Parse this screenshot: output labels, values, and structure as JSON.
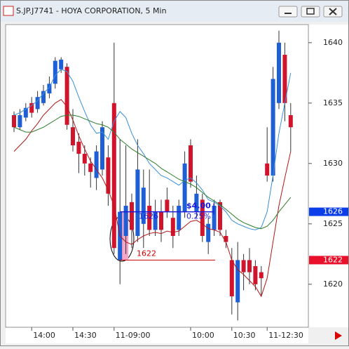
{
  "window_title": "S.JP.J7741 - HOYA CORPORATION, 5 Min",
  "chart_data": {
    "type": "candlestick",
    "ylim": [
      1616.5,
      1641.5
    ],
    "yticks": [
      1620,
      1625,
      1630,
      1635,
      1640
    ],
    "categories": [
      null,
      null,
      null,
      "14:00",
      null,
      null,
      null,
      null,
      null,
      null,
      "14:30",
      null,
      null,
      null,
      null,
      null,
      null,
      "11-09:00",
      null,
      null,
      null,
      null,
      null,
      null,
      null,
      null,
      null,
      null,
      null,
      null,
      "10:00",
      null,
      null,
      null,
      null,
      null,
      null,
      "10:30",
      null,
      null,
      null,
      null,
      null,
      "11-12:30",
      null,
      null,
      null,
      null
    ],
    "up_color": "#1f5fd6",
    "down_color": "#d0142c",
    "candles": [
      [
        1634,
        1634.3,
        1632.6,
        1633
      ],
      [
        1633,
        1634.5,
        1632.8,
        1634
      ],
      [
        1633.8,
        1635,
        1633.5,
        1634.6
      ],
      [
        1635,
        1635.5,
        1633.8,
        1634.2
      ],
      [
        1634.5,
        1636,
        1634.2,
        1635.5
      ],
      [
        1635,
        1636.5,
        1634.8,
        1636
      ],
      [
        1635.8,
        1637.2,
        1635.4,
        1636.6
      ],
      [
        1636.6,
        1638.8,
        1636.2,
        1638.5
      ],
      [
        1637.8,
        1638.8,
        1637.5,
        1638.6
      ],
      [
        1638,
        1638.3,
        1632.8,
        1633.2
      ],
      [
        1633,
        1634.5,
        1631,
        1631.5
      ],
      [
        1631.8,
        1632.5,
        1629.2,
        1630.8
      ],
      [
        1630.8,
        1631.5,
        1629,
        1630
      ],
      [
        1630,
        1630.5,
        1628,
        1629.3
      ],
      [
        1628.8,
        1631.5,
        1627.8,
        1631
      ],
      [
        1629.5,
        1633.5,
        1629,
        1633
      ],
      [
        1630.5,
        1631.5,
        1626.5,
        1627.5
      ],
      [
        1635,
        1640,
        1622.5,
        1623
      ],
      [
        1622,
        1632,
        1620,
        1626
      ],
      [
        1624,
        1631.5,
        1622.5,
        1626.5
      ],
      [
        1626.8,
        1627.5,
        1623,
        1624.5
      ],
      [
        1624,
        1632,
        1623.5,
        1629.5
      ],
      [
        1625,
        1629.5,
        1623,
        1628
      ],
      [
        1626.5,
        1629.5,
        1624,
        1624.5
      ],
      [
        1624.5,
        1627,
        1624,
        1626
      ],
      [
        1626,
        1627,
        1623.5,
        1624.5
      ],
      [
        1627,
        1628,
        1625.5,
        1626
      ],
      [
        1625.5,
        1626.5,
        1623,
        1624
      ],
      [
        1624.5,
        1627,
        1624,
        1626.5
      ],
      [
        1626,
        1631,
        1625.5,
        1630
      ],
      [
        1631.5,
        1632,
        1628,
        1628.5
      ],
      [
        1626,
        1629,
        1625.5,
        1627.5
      ],
      [
        1627,
        1627.5,
        1623.5,
        1624
      ],
      [
        1623.5,
        1625.5,
        1622.5,
        1625
      ],
      [
        1624.5,
        1627,
        1624,
        1626.5
      ],
      [
        1626.8,
        1627,
        1624,
        1624.5
      ],
      [
        1624,
        1624.5,
        1623,
        1623.5
      ],
      [
        1622,
        1623,
        1617.5,
        1619
      ],
      [
        1618.5,
        1623.5,
        1617,
        1622
      ],
      [
        1622,
        1622.5,
        1619.5,
        1621
      ],
      [
        1622,
        1623,
        1620,
        1621
      ],
      [
        1621.5,
        1622,
        1619.5,
        1620
      ],
      [
        1621,
        1621.5,
        1619,
        1620.5
      ],
      [
        1630,
        1633,
        1628.5,
        1629
      ],
      [
        1629,
        1638,
        1628.5,
        1637
      ],
      [
        1635,
        1641,
        1634.5,
        1640
      ],
      [
        1639,
        1640,
        1633.5,
        1635
      ],
      [
        1634,
        1635,
        1631,
        1633
      ]
    ],
    "series": [
      {
        "color": "#3a8fd8",
        "values": [
          1634.0,
          1634.2,
          1634.5,
          1634.8,
          1635.2,
          1635.8,
          1636.3,
          1637.3,
          1637.8,
          1637.6,
          1636.8,
          1635.5,
          1634.3,
          1633.2,
          1632.5,
          1632.6,
          1632.0,
          1633.5,
          1634.3,
          1633.8,
          1632.5,
          1631.5,
          1630.8,
          1630.0,
          1629.5,
          1629.0,
          1628.8,
          1628.5,
          1628.2,
          1628.6,
          1628.8,
          1628.4,
          1627.8,
          1627.0,
          1626.8,
          1626.5,
          1626.0,
          1625.3,
          1625.0,
          1624.8,
          1624.6,
          1624.5,
          1624.7,
          1626.0,
          1629.0,
          1632.5,
          1635.0,
          1637.5
        ]
      },
      {
        "color": "#b01818",
        "values": [
          1631.0,
          1631.5,
          1632.0,
          1632.7,
          1633.3,
          1634.0,
          1634.5,
          1635.0,
          1635.3,
          1634.7,
          1633.6,
          1632.3,
          1631.2,
          1630.2,
          1629.5,
          1628.8,
          1627.8,
          1626.5,
          1624.0,
          1623.5,
          1623.3,
          1623.7,
          1624.0,
          1624.2,
          1624.3,
          1624.2,
          1624.4,
          1624.3,
          1624.4,
          1624.8,
          1625.2,
          1625.3,
          1625.0,
          1624.6,
          1624.5,
          1624.3,
          1623.5,
          1622.0,
          1621.2,
          1620.8,
          1620.3,
          1619.8,
          1619.0,
          1620.5,
          1623.5,
          1626.5,
          1628.8,
          1631.0
        ]
      },
      {
        "color": "#2e7d2e",
        "values": [
          1633.0,
          1632.8,
          1632.6,
          1632.6,
          1632.8,
          1633.0,
          1633.3,
          1633.6,
          1633.9,
          1634.0,
          1634.0,
          1633.9,
          1633.7,
          1633.5,
          1633.3,
          1633.2,
          1633.0,
          1632.6,
          1632.0,
          1631.6,
          1631.2,
          1630.9,
          1630.6,
          1630.3,
          1630.0,
          1629.6,
          1629.3,
          1629.0,
          1628.7,
          1628.5,
          1628.3,
          1628.0,
          1627.6,
          1627.2,
          1626.9,
          1626.6,
          1626.2,
          1625.8,
          1625.4,
          1625.1,
          1624.9,
          1624.7,
          1624.6,
          1624.8,
          1625.3,
          1626.0,
          1626.6,
          1627.2
        ]
      }
    ],
    "level_line": {
      "value": 1622,
      "color": "#cc0000"
    },
    "measure": {
      "value": 1626,
      "change": "$4.00",
      "percent": "0.25%",
      "color": "#1a1adc"
    },
    "price_tags": [
      {
        "value": 1626,
        "color": "#0b3ee8"
      },
      {
        "value": 1622,
        "color": "#e8102a"
      }
    ]
  }
}
